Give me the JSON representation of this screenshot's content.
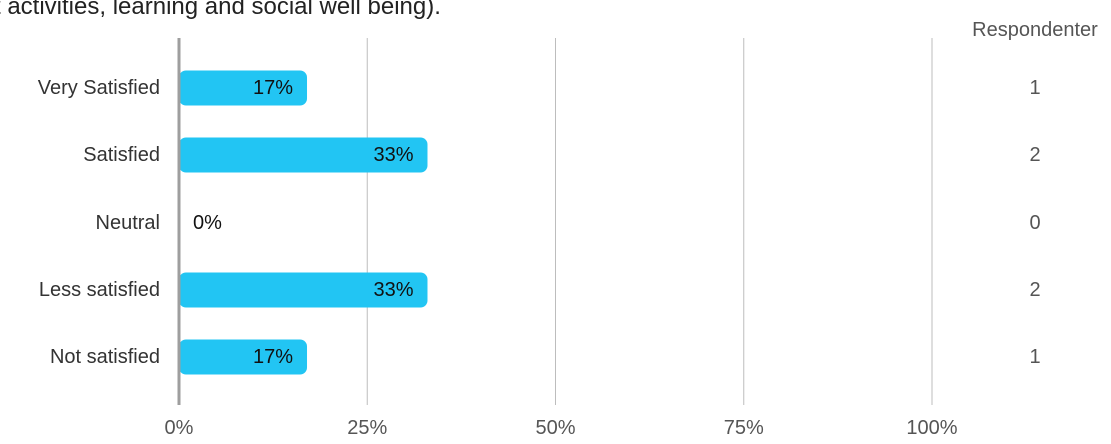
{
  "header": {
    "question_fragment": "t activities, learning and social well being)."
  },
  "chart_data": {
    "type": "bar",
    "orientation": "horizontal",
    "categories": [
      "Very Satisfied",
      "Satisfied",
      "Neutral",
      "Less satisfied",
      "Not satisfied"
    ],
    "values": [
      17,
      33,
      0,
      33,
      17
    ],
    "value_labels": [
      "17%",
      "33%",
      "0%",
      "33%",
      "17%"
    ],
    "respondents_header": "Respondenter",
    "respondents": [
      "1",
      "2",
      "0",
      "2",
      "1"
    ],
    "xlim": [
      0,
      100
    ],
    "xticks": [
      0,
      25,
      50,
      75,
      100
    ],
    "xtick_labels": [
      "0%",
      "25%",
      "50%",
      "75%",
      "100%"
    ],
    "grid": true,
    "colors": {
      "bar": "#22C5F3",
      "grid": "#BDBDBD",
      "axis": "#9E9E9E",
      "text": "#333333"
    }
  }
}
